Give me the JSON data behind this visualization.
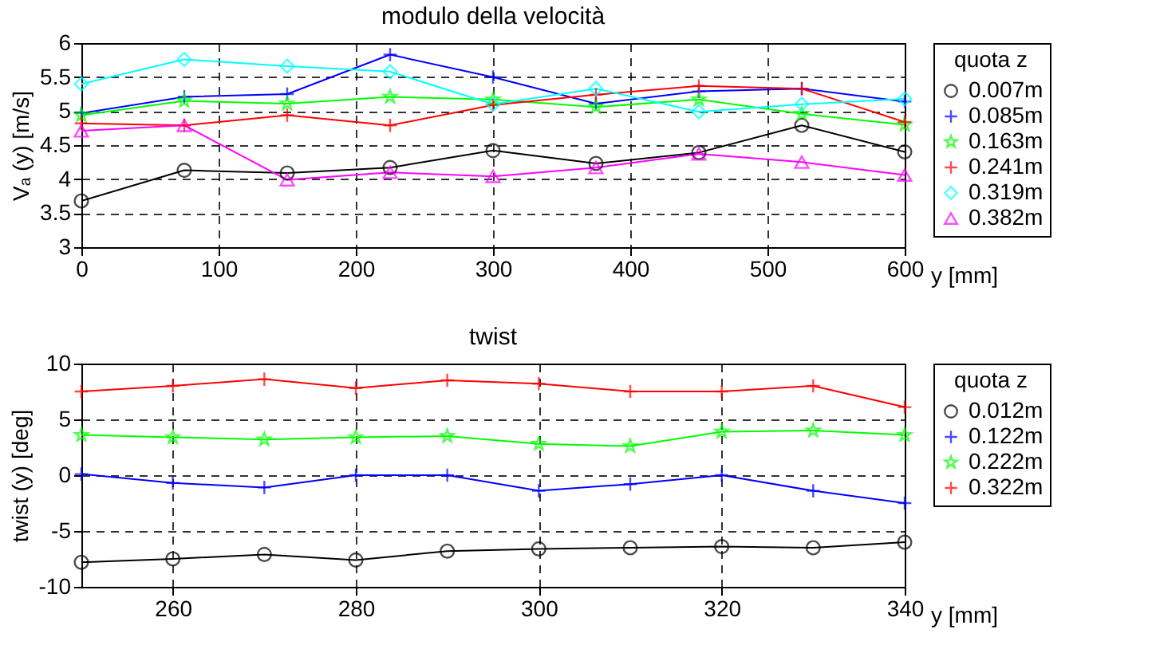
{
  "chart_data": [
    {
      "type": "line",
      "title": "modulo della velocità",
      "xlabel": "y [mm]",
      "ylabel": "Vₐ (y) [m/s]",
      "legend_title": "quota  z",
      "legend": "right",
      "grid": true,
      "line_style": "solid",
      "x": [
        0,
        75,
        150,
        225,
        300,
        375,
        450,
        525,
        600
      ],
      "xlim": [
        0,
        600
      ],
      "xticks": [
        0,
        100,
        200,
        300,
        400,
        500,
        600
      ],
      "ylim": [
        3,
        6
      ],
      "yticks": [
        3,
        3.5,
        4,
        4.5,
        5,
        5.5,
        6
      ],
      "series": [
        {
          "name": "0.007m",
          "color": "#000000",
          "marker": "circle",
          "values": [
            3.68,
            4.13,
            4.09,
            4.17,
            4.42,
            4.23,
            4.39,
            4.79,
            4.4
          ]
        },
        {
          "name": "0.085m",
          "color": "#0000ff",
          "marker": "cross",
          "values": [
            4.97,
            5.21,
            5.25,
            5.83,
            5.5,
            5.11,
            5.29,
            5.33,
            5.14
          ]
        },
        {
          "name": "0.163m",
          "color": "#00ff00",
          "marker": "star",
          "values": [
            4.94,
            5.15,
            5.11,
            5.21,
            5.17,
            5.06,
            5.17,
            4.96,
            4.8
          ]
        },
        {
          "name": "0.241m",
          "color": "#ff0000",
          "marker": "cross",
          "values": [
            4.82,
            4.79,
            4.94,
            4.79,
            5.09,
            5.24,
            5.37,
            5.33,
            4.84
          ]
        },
        {
          "name": "0.319m",
          "color": "#00ffff",
          "marker": "diamond",
          "values": [
            5.4,
            5.76,
            5.66,
            5.58,
            5.1,
            5.33,
            4.99,
            5.1,
            5.18
          ]
        },
        {
          "name": "0.382m",
          "color": "#ff00ff",
          "marker": "triangle",
          "values": [
            4.71,
            4.79,
            3.99,
            4.1,
            4.04,
            4.17,
            4.37,
            4.25,
            4.06
          ]
        }
      ]
    },
    {
      "type": "line",
      "title": "twist",
      "xlabel": "y [mm]",
      "ylabel": "twist (y) [deg]",
      "legend_title": "quota  z",
      "legend": "right",
      "grid": true,
      "line_style": "solid",
      "x": [
        250,
        260,
        270,
        280,
        290,
        300,
        310,
        320,
        330,
        340
      ],
      "xlim": [
        250,
        340
      ],
      "xticks": [
        260,
        280,
        300,
        320,
        340
      ],
      "ylim": [
        -10,
        10
      ],
      "yticks": [
        -10,
        -5,
        0,
        5,
        10
      ],
      "series": [
        {
          "name": "0.012m",
          "color": "#000000",
          "marker": "circle",
          "values": [
            -7.8,
            -7.5,
            -7.1,
            -7.6,
            -6.8,
            -6.6,
            -6.5,
            -6.4,
            -6.5,
            -6.0
          ]
        },
        {
          "name": "0.122m",
          "color": "#0000ff",
          "marker": "cross",
          "values": [
            0.1,
            -0.7,
            -1.1,
            0,
            0,
            -1.4,
            -0.8,
            0,
            -1.4,
            -2.5
          ]
        },
        {
          "name": "0.222m",
          "color": "#00ff00",
          "marker": "star",
          "values": [
            3.6,
            3.4,
            3.2,
            3.4,
            3.5,
            2.8,
            2.6,
            3.9,
            4.0,
            3.6
          ]
        },
        {
          "name": "0.322m",
          "color": "#ff0000",
          "marker": "cross",
          "values": [
            7.5,
            8.0,
            8.6,
            7.8,
            8.5,
            8.2,
            7.5,
            7.5,
            8.0,
            6.1
          ]
        }
      ]
    }
  ]
}
